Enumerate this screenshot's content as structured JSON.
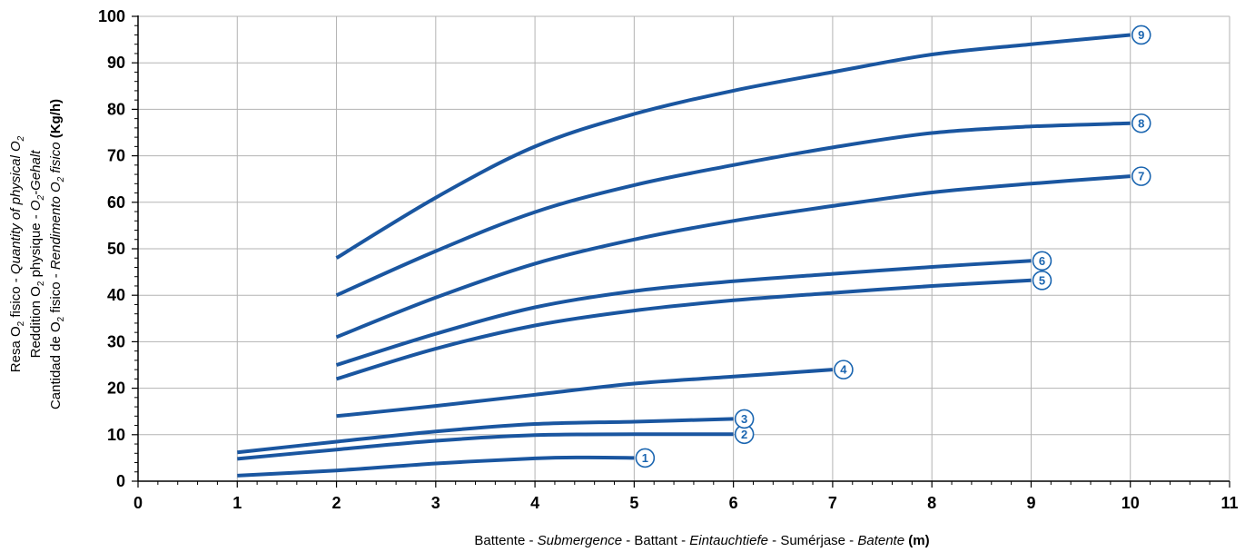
{
  "chart_data": {
    "type": "line",
    "xlabel_parts": [
      {
        "text": "Battente - ",
        "style": "normal"
      },
      {
        "text": "Submergence",
        "style": "italic"
      },
      {
        "text": " - Battant - ",
        "style": "normal"
      },
      {
        "text": "Eintauchtiefe",
        "style": "italic"
      },
      {
        "text": " - Sumérjase - ",
        "style": "normal"
      },
      {
        "text": "Batente",
        "style": "italic"
      },
      {
        "text": " (m)",
        "style": "bold"
      }
    ],
    "ylabel_lines": [
      [
        {
          "text": "Resa O",
          "style": "normal"
        },
        {
          "text": "2",
          "style": "sub"
        },
        {
          "text": " fisico - ",
          "style": "normal"
        },
        {
          "text": "Quantity of physical O",
          "style": "italic"
        },
        {
          "text": "2",
          "style": "sub-italic"
        }
      ],
      [
        {
          "text": "Reddition O",
          "style": "normal"
        },
        {
          "text": "2",
          "style": "sub"
        },
        {
          "text": " physique - ",
          "style": "normal"
        },
        {
          "text": "O",
          "style": "italic"
        },
        {
          "text": "2",
          "style": "sub-italic"
        },
        {
          "text": "-Gehalt",
          "style": "italic"
        }
      ],
      [
        {
          "text": "Cantidad de O",
          "style": "normal"
        },
        {
          "text": "2",
          "style": "sub"
        },
        {
          "text": " fisico - ",
          "style": "normal"
        },
        {
          "text": "Rendimento O",
          "style": "italic"
        },
        {
          "text": "2",
          "style": "sub-italic"
        },
        {
          "text": " fisico",
          "style": "italic"
        },
        {
          "text": " (Kg/h)",
          "style": "bold"
        }
      ]
    ],
    "xlim": [
      0,
      11
    ],
    "ylim": [
      0,
      100
    ],
    "x_ticks": [
      0,
      1,
      2,
      3,
      4,
      5,
      6,
      7,
      8,
      9,
      10,
      11
    ],
    "y_ticks": [
      0,
      10,
      20,
      30,
      40,
      50,
      60,
      70,
      80,
      90,
      100
    ],
    "grid": true,
    "minor_ticks": true,
    "line_color": "#1a56a0",
    "badge_color": "#1a65b0",
    "series": [
      {
        "name": "1",
        "x": [
          1,
          2,
          3,
          4,
          4.5,
          5
        ],
        "y": [
          1.2,
          2.3,
          3.8,
          4.9,
          5.1,
          5.0
        ]
      },
      {
        "name": "2",
        "x": [
          1,
          2,
          3,
          4,
          5,
          6
        ],
        "y": [
          4.8,
          6.8,
          8.7,
          9.9,
          10.1,
          10.1
        ]
      },
      {
        "name": "3",
        "x": [
          1,
          2,
          3,
          4,
          5,
          6
        ],
        "y": [
          6.2,
          8.5,
          10.7,
          12.3,
          12.8,
          13.4
        ]
      },
      {
        "name": "4",
        "x": [
          2,
          3,
          4,
          5,
          6,
          7
        ],
        "y": [
          14.0,
          16.2,
          18.6,
          21.0,
          22.5,
          24.0
        ]
      },
      {
        "name": "5",
        "x": [
          2,
          3,
          4,
          5,
          6,
          7,
          8,
          9
        ],
        "y": [
          22.0,
          28.5,
          33.5,
          36.7,
          38.9,
          40.5,
          42.0,
          43.2
        ]
      },
      {
        "name": "6",
        "x": [
          2,
          3,
          4,
          5,
          6,
          7,
          8,
          9
        ],
        "y": [
          25.0,
          31.7,
          37.4,
          40.9,
          43.0,
          44.6,
          46.1,
          47.4
        ]
      },
      {
        "name": "7",
        "x": [
          2,
          3,
          4,
          5,
          6,
          7,
          8,
          9,
          10
        ],
        "y": [
          31.0,
          39.5,
          46.8,
          52.0,
          56.0,
          59.2,
          62.1,
          64.0,
          65.6
        ]
      },
      {
        "name": "8",
        "x": [
          2,
          3,
          4,
          5,
          6,
          7,
          8,
          9,
          10
        ],
        "y": [
          40.0,
          49.5,
          57.9,
          63.7,
          68.0,
          71.8,
          74.9,
          76.3,
          77.0
        ]
      },
      {
        "name": "9",
        "x": [
          2,
          3,
          4,
          5,
          6,
          7,
          8,
          9,
          10
        ],
        "y": [
          48.0,
          61.0,
          72.0,
          79.0,
          84.0,
          88.0,
          91.8,
          94.0,
          96.0
        ]
      }
    ]
  }
}
